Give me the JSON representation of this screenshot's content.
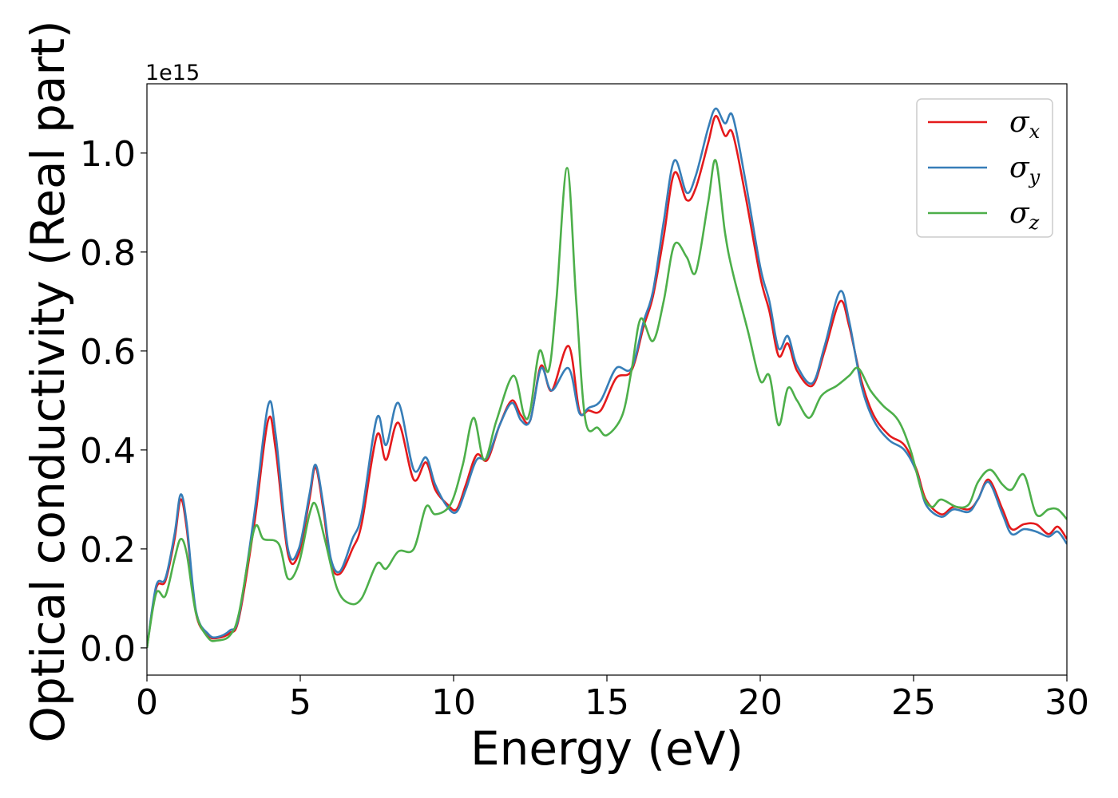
{
  "chart_data": {
    "type": "line",
    "title": "",
    "xlabel": "Energy (eV)",
    "ylabel": "Optical conductivity (Real part)",
    "y_offset_label": "1e15",
    "xlim": [
      0,
      30
    ],
    "ylim": [
      -0.055,
      1.14
    ],
    "x_ticks": [
      0,
      5,
      10,
      15,
      20,
      25,
      30
    ],
    "x_tick_labels": [
      "0",
      "5",
      "10",
      "15",
      "20",
      "25",
      "30"
    ],
    "y_ticks": [
      0.0,
      0.2,
      0.4,
      0.6,
      0.8,
      1.0
    ],
    "y_tick_labels": [
      "0.0",
      "0.2",
      "0.4",
      "0.6",
      "0.8",
      "1.0"
    ],
    "grid": false,
    "legend_position": "top-right",
    "series": [
      {
        "symbol": "σ",
        "subscript": "x",
        "color": "#e41a1c",
        "points": [
          [
            0,
            0
          ],
          [
            0.3,
            0.12
          ],
          [
            0.6,
            0.135
          ],
          [
            0.9,
            0.22
          ],
          [
            1.1,
            0.3
          ],
          [
            1.3,
            0.24
          ],
          [
            1.6,
            0.07
          ],
          [
            2.0,
            0.025
          ],
          [
            2.3,
            0.02
          ],
          [
            2.7,
            0.03
          ],
          [
            3.0,
            0.06
          ],
          [
            3.5,
            0.25
          ],
          [
            3.95,
            0.46
          ],
          [
            4.2,
            0.4
          ],
          [
            4.6,
            0.19
          ],
          [
            4.95,
            0.19
          ],
          [
            5.3,
            0.3
          ],
          [
            5.5,
            0.365
          ],
          [
            5.75,
            0.28
          ],
          [
            6.0,
            0.17
          ],
          [
            6.3,
            0.15
          ],
          [
            6.7,
            0.2
          ],
          [
            7.0,
            0.25
          ],
          [
            7.5,
            0.43
          ],
          [
            7.8,
            0.38
          ],
          [
            8.2,
            0.455
          ],
          [
            8.7,
            0.34
          ],
          [
            9.1,
            0.375
          ],
          [
            9.4,
            0.32
          ],
          [
            9.8,
            0.29
          ],
          [
            10.1,
            0.28
          ],
          [
            10.4,
            0.33
          ],
          [
            10.75,
            0.39
          ],
          [
            11.1,
            0.38
          ],
          [
            11.5,
            0.45
          ],
          [
            11.9,
            0.5
          ],
          [
            12.2,
            0.47
          ],
          [
            12.5,
            0.46
          ],
          [
            12.85,
            0.57
          ],
          [
            13.2,
            0.52
          ],
          [
            13.75,
            0.61
          ],
          [
            14.1,
            0.48
          ],
          [
            14.4,
            0.48
          ],
          [
            14.8,
            0.48
          ],
          [
            15.3,
            0.545
          ],
          [
            15.8,
            0.56
          ],
          [
            16.2,
            0.65
          ],
          [
            16.5,
            0.71
          ],
          [
            16.85,
            0.83
          ],
          [
            17.2,
            0.96
          ],
          [
            17.6,
            0.905
          ],
          [
            17.9,
            0.93
          ],
          [
            18.3,
            1.02
          ],
          [
            18.55,
            1.075
          ],
          [
            18.85,
            1.035
          ],
          [
            19.1,
            1.04
          ],
          [
            19.5,
            0.92
          ],
          [
            20.0,
            0.75
          ],
          [
            20.3,
            0.68
          ],
          [
            20.6,
            0.59
          ],
          [
            20.9,
            0.615
          ],
          [
            21.2,
            0.56
          ],
          [
            21.7,
            0.53
          ],
          [
            22.1,
            0.6
          ],
          [
            22.6,
            0.7
          ],
          [
            22.9,
            0.65
          ],
          [
            23.3,
            0.54
          ],
          [
            23.7,
            0.47
          ],
          [
            24.2,
            0.43
          ],
          [
            24.7,
            0.41
          ],
          [
            25.1,
            0.36
          ],
          [
            25.4,
            0.3
          ],
          [
            25.9,
            0.27
          ],
          [
            26.3,
            0.285
          ],
          [
            26.8,
            0.28
          ],
          [
            27.1,
            0.3
          ],
          [
            27.45,
            0.34
          ],
          [
            27.9,
            0.28
          ],
          [
            28.2,
            0.24
          ],
          [
            28.6,
            0.25
          ],
          [
            29.0,
            0.25
          ],
          [
            29.4,
            0.23
          ],
          [
            29.7,
            0.245
          ],
          [
            30.0,
            0.22
          ]
        ]
      },
      {
        "symbol": "σ",
        "subscript": "y",
        "color": "#377eb8",
        "points": [
          [
            0,
            0
          ],
          [
            0.3,
            0.125
          ],
          [
            0.6,
            0.14
          ],
          [
            0.9,
            0.23
          ],
          [
            1.1,
            0.31
          ],
          [
            1.3,
            0.25
          ],
          [
            1.6,
            0.075
          ],
          [
            2.0,
            0.028
          ],
          [
            2.3,
            0.022
          ],
          [
            2.7,
            0.035
          ],
          [
            3.0,
            0.065
          ],
          [
            3.5,
            0.27
          ],
          [
            3.95,
            0.49
          ],
          [
            4.2,
            0.43
          ],
          [
            4.6,
            0.2
          ],
          [
            4.95,
            0.2
          ],
          [
            5.3,
            0.31
          ],
          [
            5.5,
            0.37
          ],
          [
            5.75,
            0.29
          ],
          [
            6.0,
            0.18
          ],
          [
            6.3,
            0.155
          ],
          [
            6.7,
            0.22
          ],
          [
            7.0,
            0.27
          ],
          [
            7.5,
            0.465
          ],
          [
            7.8,
            0.41
          ],
          [
            8.2,
            0.495
          ],
          [
            8.7,
            0.36
          ],
          [
            9.1,
            0.385
          ],
          [
            9.4,
            0.33
          ],
          [
            9.8,
            0.285
          ],
          [
            10.1,
            0.275
          ],
          [
            10.4,
            0.32
          ],
          [
            10.75,
            0.38
          ],
          [
            11.1,
            0.385
          ],
          [
            11.5,
            0.45
          ],
          [
            11.9,
            0.495
          ],
          [
            12.2,
            0.46
          ],
          [
            12.5,
            0.46
          ],
          [
            12.85,
            0.565
          ],
          [
            13.2,
            0.52
          ],
          [
            13.75,
            0.565
          ],
          [
            14.1,
            0.475
          ],
          [
            14.4,
            0.485
          ],
          [
            14.8,
            0.5
          ],
          [
            15.3,
            0.565
          ],
          [
            15.8,
            0.565
          ],
          [
            16.2,
            0.66
          ],
          [
            16.5,
            0.72
          ],
          [
            16.85,
            0.86
          ],
          [
            17.2,
            0.985
          ],
          [
            17.6,
            0.92
          ],
          [
            17.9,
            0.955
          ],
          [
            18.3,
            1.05
          ],
          [
            18.55,
            1.09
          ],
          [
            18.85,
            1.06
          ],
          [
            19.1,
            1.075
          ],
          [
            19.5,
            0.95
          ],
          [
            20.0,
            0.77
          ],
          [
            20.3,
            0.7
          ],
          [
            20.6,
            0.605
          ],
          [
            20.9,
            0.63
          ],
          [
            21.2,
            0.57
          ],
          [
            21.7,
            0.535
          ],
          [
            22.1,
            0.61
          ],
          [
            22.6,
            0.72
          ],
          [
            22.9,
            0.66
          ],
          [
            23.3,
            0.53
          ],
          [
            23.7,
            0.46
          ],
          [
            24.2,
            0.42
          ],
          [
            24.7,
            0.4
          ],
          [
            25.1,
            0.355
          ],
          [
            25.4,
            0.29
          ],
          [
            25.9,
            0.265
          ],
          [
            26.3,
            0.28
          ],
          [
            26.8,
            0.275
          ],
          [
            27.1,
            0.3
          ],
          [
            27.45,
            0.335
          ],
          [
            27.9,
            0.27
          ],
          [
            28.2,
            0.23
          ],
          [
            28.6,
            0.24
          ],
          [
            29.0,
            0.235
          ],
          [
            29.4,
            0.225
          ],
          [
            29.7,
            0.235
          ],
          [
            30.0,
            0.21
          ]
        ]
      },
      {
        "symbol": "σ",
        "subscript": "z",
        "color": "#4daf4a",
        "points": [
          [
            0,
            0
          ],
          [
            0.3,
            0.11
          ],
          [
            0.6,
            0.105
          ],
          [
            0.9,
            0.18
          ],
          [
            1.1,
            0.22
          ],
          [
            1.3,
            0.19
          ],
          [
            1.6,
            0.07
          ],
          [
            2.0,
            0.02
          ],
          [
            2.3,
            0.015
          ],
          [
            2.7,
            0.025
          ],
          [
            3.0,
            0.07
          ],
          [
            3.5,
            0.24
          ],
          [
            3.8,
            0.22
          ],
          [
            4.3,
            0.21
          ],
          [
            4.6,
            0.14
          ],
          [
            4.95,
            0.17
          ],
          [
            5.3,
            0.27
          ],
          [
            5.5,
            0.29
          ],
          [
            5.8,
            0.22
          ],
          [
            6.2,
            0.12
          ],
          [
            6.6,
            0.09
          ],
          [
            7.0,
            0.1
          ],
          [
            7.5,
            0.17
          ],
          [
            7.8,
            0.16
          ],
          [
            8.2,
            0.195
          ],
          [
            8.7,
            0.2
          ],
          [
            9.1,
            0.285
          ],
          [
            9.4,
            0.27
          ],
          [
            9.9,
            0.29
          ],
          [
            10.3,
            0.37
          ],
          [
            10.65,
            0.465
          ],
          [
            11.0,
            0.38
          ],
          [
            11.4,
            0.46
          ],
          [
            11.95,
            0.55
          ],
          [
            12.3,
            0.47
          ],
          [
            12.5,
            0.48
          ],
          [
            12.8,
            0.6
          ],
          [
            13.1,
            0.56
          ],
          [
            13.35,
            0.7
          ],
          [
            13.7,
            0.97
          ],
          [
            14.0,
            0.7
          ],
          [
            14.3,
            0.46
          ],
          [
            14.7,
            0.445
          ],
          [
            15.0,
            0.43
          ],
          [
            15.5,
            0.47
          ],
          [
            15.8,
            0.56
          ],
          [
            16.1,
            0.665
          ],
          [
            16.5,
            0.62
          ],
          [
            16.85,
            0.7
          ],
          [
            17.2,
            0.815
          ],
          [
            17.6,
            0.79
          ],
          [
            17.9,
            0.76
          ],
          [
            18.3,
            0.9
          ],
          [
            18.55,
            0.985
          ],
          [
            18.85,
            0.84
          ],
          [
            19.1,
            0.76
          ],
          [
            19.6,
            0.64
          ],
          [
            20.0,
            0.54
          ],
          [
            20.3,
            0.55
          ],
          [
            20.6,
            0.45
          ],
          [
            20.9,
            0.525
          ],
          [
            21.2,
            0.5
          ],
          [
            21.6,
            0.465
          ],
          [
            22.0,
            0.51
          ],
          [
            22.5,
            0.53
          ],
          [
            22.9,
            0.55
          ],
          [
            23.2,
            0.565
          ],
          [
            23.6,
            0.52
          ],
          [
            24.0,
            0.49
          ],
          [
            24.5,
            0.46
          ],
          [
            24.9,
            0.4
          ],
          [
            25.3,
            0.31
          ],
          [
            25.6,
            0.285
          ],
          [
            25.9,
            0.3
          ],
          [
            26.4,
            0.285
          ],
          [
            26.8,
            0.29
          ],
          [
            27.1,
            0.335
          ],
          [
            27.5,
            0.36
          ],
          [
            27.9,
            0.33
          ],
          [
            28.2,
            0.32
          ],
          [
            28.6,
            0.35
          ],
          [
            29.0,
            0.27
          ],
          [
            29.4,
            0.28
          ],
          [
            29.7,
            0.28
          ],
          [
            30.0,
            0.26
          ]
        ]
      }
    ]
  }
}
